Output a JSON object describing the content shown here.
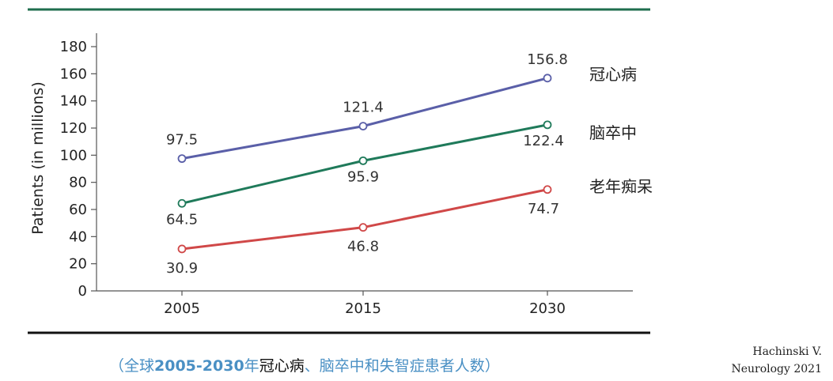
{
  "chart_data": {
    "type": "line",
    "x": [
      "2005",
      "2015",
      "2030"
    ],
    "ylabel": "Patients (in millions)",
    "ylim": [
      0,
      180
    ],
    "yticks": [
      0,
      20,
      40,
      60,
      80,
      100,
      120,
      140,
      160,
      180
    ],
    "series": [
      {
        "name": "冠心病",
        "values": [
          97.5,
          121.4,
          156.8
        ],
        "labels": [
          "97.5",
          "121.4",
          "156.8"
        ],
        "color": "#5a5fa8"
      },
      {
        "name": "脑卒中",
        "values": [
          64.5,
          95.9,
          122.4
        ],
        "labels": [
          "64.5",
          "95.9",
          "122.4"
        ],
        "color": "#1f7a5a"
      },
      {
        "name": "老年痴呆",
        "values": [
          30.9,
          46.8,
          74.7
        ],
        "labels": [
          "30.9",
          "46.8",
          "74.7"
        ],
        "color": "#d04848"
      }
    ],
    "grid": false
  },
  "caption": {
    "open": "（全球",
    "years": "2005-2030",
    "year_char": "年",
    "dark": "冠心病",
    "rest": "、脑卒中和失智症患者人数）"
  },
  "citation": {
    "line1": "Hachinski V.",
    "line2": "Neurology 2021"
  },
  "colors": {
    "top_rule": "#1f6e4e",
    "bottom_rule": "#111111"
  }
}
